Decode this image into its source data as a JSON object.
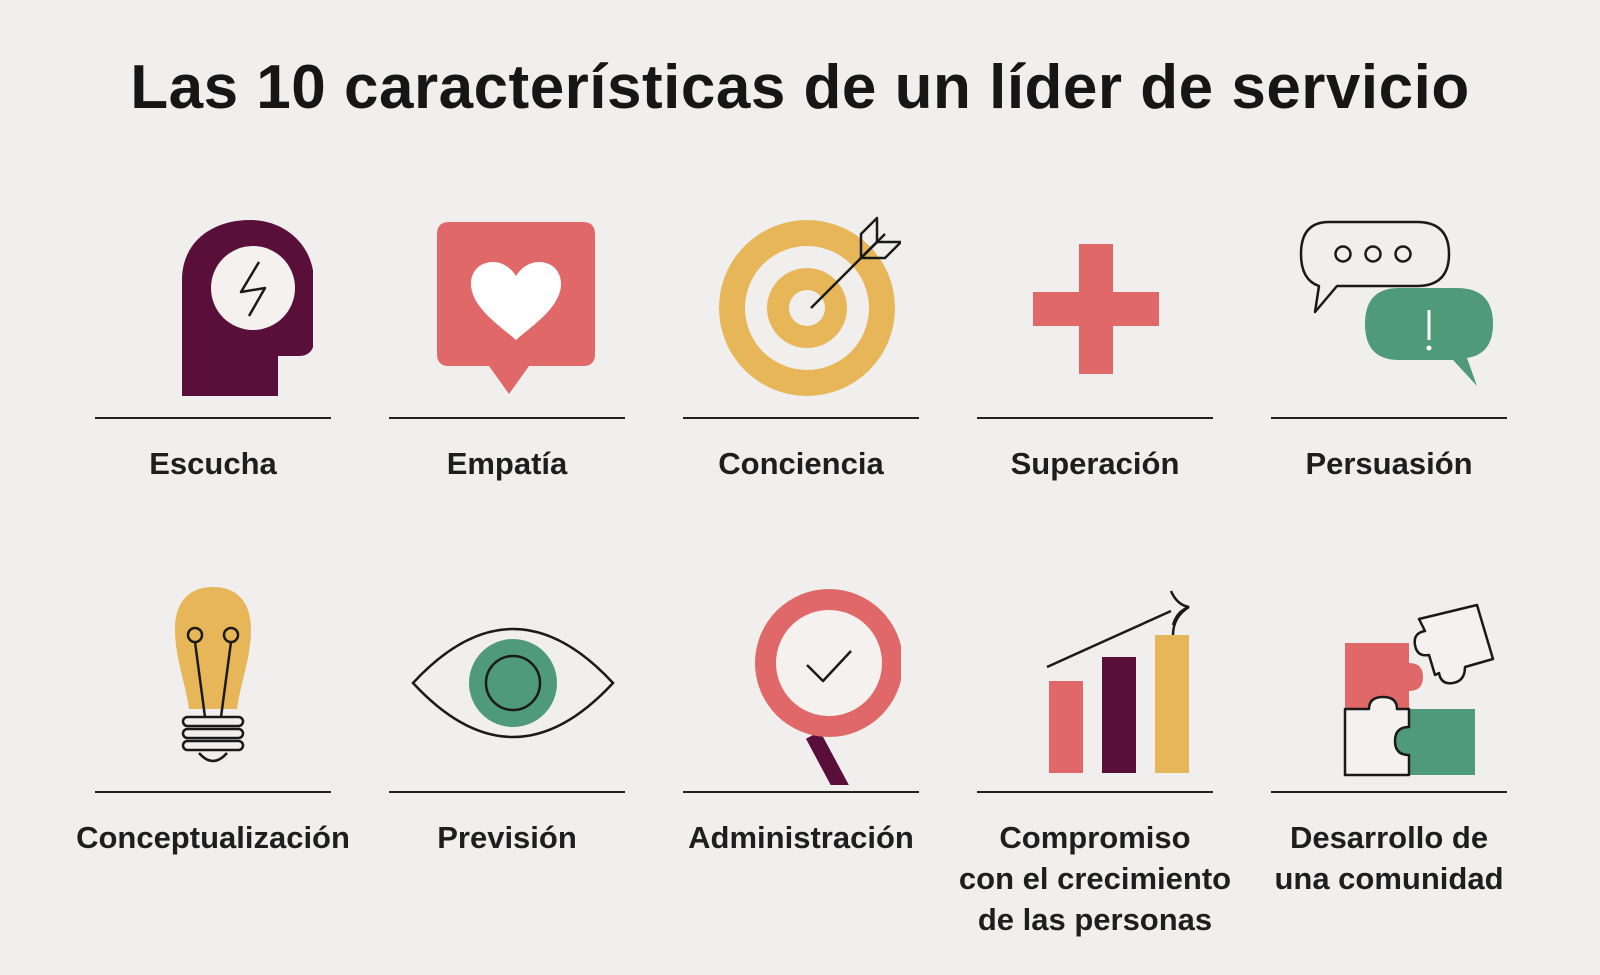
{
  "title": "Las 10 características de un líder de servicio",
  "colors": {
    "plum": "#5a0f3b",
    "coral": "#e06868",
    "mustard": "#e6b659",
    "green": "#4f9a7b",
    "ink": "#1a1a1a",
    "background": "#f0efee"
  },
  "items": [
    {
      "icon": "head-lightning-icon",
      "lines": [
        "Escucha"
      ]
    },
    {
      "icon": "heart-speech-bubble-icon",
      "lines": [
        "Empatía"
      ]
    },
    {
      "icon": "target-arrow-icon",
      "lines": [
        "Conciencia"
      ]
    },
    {
      "icon": "plus-cross-icon",
      "lines": [
        "Superación"
      ]
    },
    {
      "icon": "chat-bubbles-icon",
      "lines": [
        "Persuasión"
      ]
    },
    {
      "icon": "lightbulb-icon",
      "lines": [
        "Conceptualización"
      ]
    },
    {
      "icon": "eye-icon",
      "lines": [
        "Previsión"
      ]
    },
    {
      "icon": "magnifier-check-icon",
      "lines": [
        "Administración"
      ]
    },
    {
      "icon": "growth-chart-icon",
      "lines": [
        "Compromiso",
        "con el crecimiento",
        "de las personas"
      ]
    },
    {
      "icon": "puzzle-pieces-icon",
      "lines": [
        "Desarrollo de",
        "una comunidad"
      ]
    }
  ]
}
